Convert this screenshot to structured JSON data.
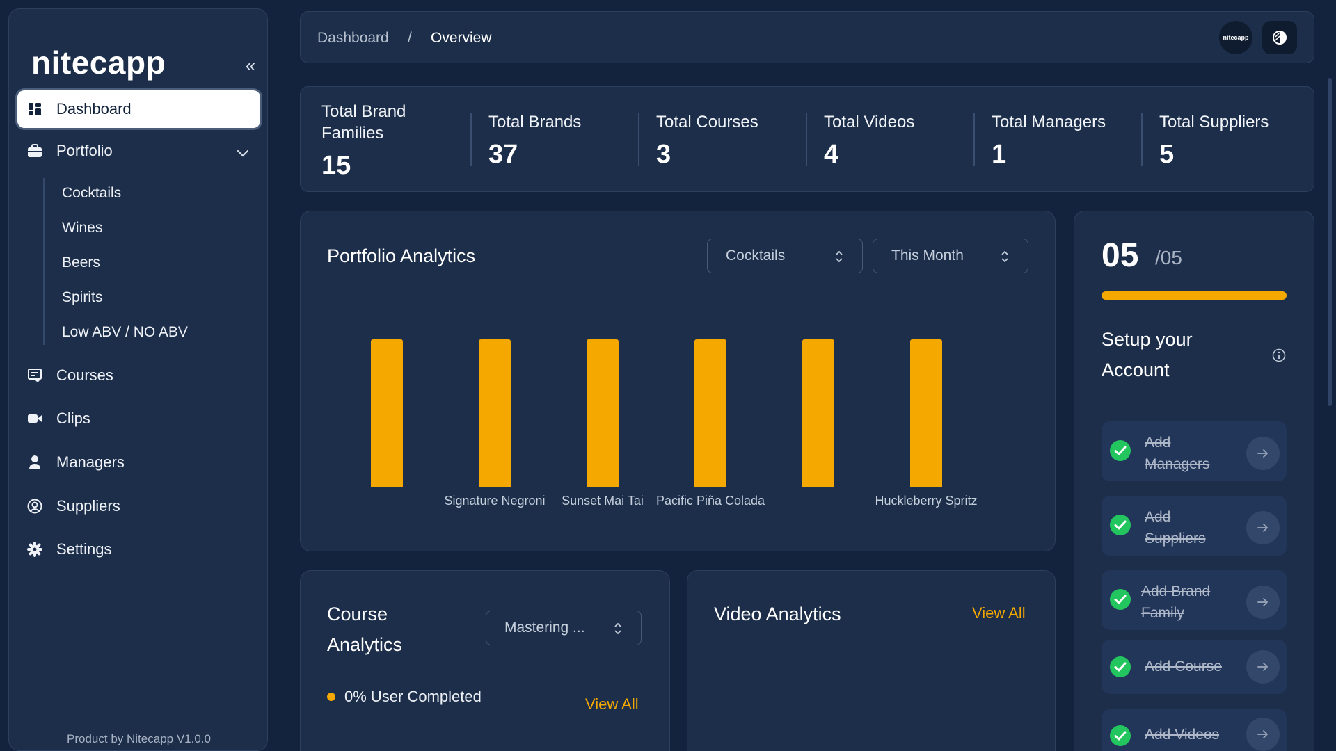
{
  "sidebar": {
    "logo": "nitecapp",
    "collapse_glyph": "«",
    "items": [
      {
        "label": "Dashboard",
        "icon": "dashboard-icon"
      },
      {
        "label": "Portfolio",
        "icon": "briefcase-icon"
      },
      {
        "label": "Courses",
        "icon": "courses-icon"
      },
      {
        "label": "Clips",
        "icon": "video-camera-icon"
      },
      {
        "label": "Managers",
        "icon": "user-icon"
      },
      {
        "label": "Suppliers",
        "icon": "user-circle-icon"
      },
      {
        "label": "Settings",
        "icon": "gear-icon"
      }
    ],
    "portfolio_sub": [
      "Cocktails",
      "Wines",
      "Beers",
      "Spirits",
      "Low ABV / NO ABV"
    ],
    "footer": "Product by Nitecapp V1.0.0"
  },
  "header": {
    "breadcrumb": [
      "Dashboard",
      "Overview"
    ],
    "separator": "/",
    "avatar_text": "nitecapp"
  },
  "stats": [
    {
      "label": "Total Brand Families",
      "value": "15"
    },
    {
      "label": "Total Brands",
      "value": "37"
    },
    {
      "label": "Total Courses",
      "value": "3"
    },
    {
      "label": "Total Videos",
      "value": "4"
    },
    {
      "label": "Total Managers",
      "value": "1"
    },
    {
      "label": "Total Suppliers",
      "value": "5"
    }
  ],
  "portfolio_analytics": {
    "title": "Portfolio Analytics",
    "category_select": "Cocktails",
    "period_select": "This Month"
  },
  "chart_data": {
    "type": "bar",
    "categories": [
      "",
      "Signature Negroni",
      "Sunset Mai Tai",
      "Pacific Piña Colada",
      "",
      "Huckleberry Spritz"
    ],
    "values": [
      1,
      1,
      1,
      1,
      1,
      1
    ],
    "color": "#f5a800",
    "grid": false
  },
  "course_analytics": {
    "title": "Course Analytics",
    "select": "Mastering ...",
    "legend": "0% User Completed",
    "view_all": "View All"
  },
  "video_analytics": {
    "title": "Video Analytics",
    "view_all": "View All"
  },
  "setup": {
    "count": "05",
    "total": "/05",
    "progress": 1.0,
    "title": "Setup your Account",
    "items": [
      {
        "label": "Add Managers",
        "done": true
      },
      {
        "label": "Add Suppliers",
        "done": true
      },
      {
        "label": "Add Brand Family",
        "done": true
      },
      {
        "label": "Add Course",
        "done": true
      },
      {
        "label": "Add Videos",
        "done": true
      }
    ]
  },
  "colors": {
    "background": "#13233d",
    "card": "#1c2e4a",
    "accent": "#f5a800",
    "success": "#22c55e"
  }
}
